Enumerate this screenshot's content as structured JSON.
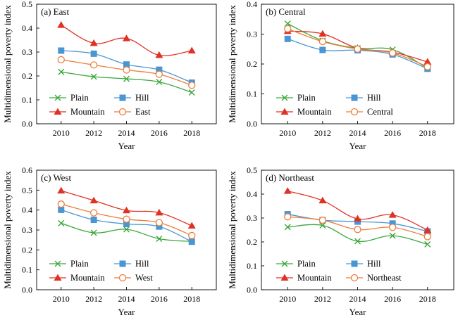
{
  "chart_data": [
    {
      "type": "line",
      "title": "(a) East",
      "xlabel": "Year",
      "ylabel": "Multidimensional poverty index",
      "x": [
        2010,
        2012,
        2014,
        2016,
        2018
      ],
      "xlim": [
        2008.5,
        2019.5
      ],
      "ylim": [
        0,
        0.5
      ],
      "yticks": [
        "0.0",
        "0.1",
        "0.2",
        "0.3",
        "0.4",
        "0.5"
      ],
      "legend_position": "bottom-left",
      "grid": false,
      "series": [
        {
          "name": "Plain",
          "marker": "x",
          "color": "#3aa83a",
          "values": [
            0.217,
            0.197,
            0.188,
            0.175,
            0.131
          ]
        },
        {
          "name": "Hill",
          "marker": "square",
          "color": "#4a96d2",
          "values": [
            0.306,
            0.293,
            0.248,
            0.226,
            0.172
          ]
        },
        {
          "name": "Mountain",
          "marker": "triangle",
          "color": "#e03224",
          "values": [
            0.413,
            0.337,
            0.357,
            0.287,
            0.306
          ]
        },
        {
          "name": "East",
          "marker": "circle",
          "color": "#ee7d3a",
          "values": [
            0.268,
            0.246,
            0.225,
            0.207,
            0.161
          ]
        }
      ]
    },
    {
      "type": "line",
      "title": "(b) Central",
      "xlabel": "Year",
      "ylabel": "Multidimensional poverty index",
      "x": [
        2010,
        2012,
        2014,
        2016,
        2018
      ],
      "xlim": [
        2008.5,
        2019.5
      ],
      "ylim": [
        0,
        0.4
      ],
      "yticks": [
        "0.0",
        "0.1",
        "0.2",
        "0.3",
        "0.4"
      ],
      "legend_position": "bottom-left",
      "grid": false,
      "series": [
        {
          "name": "Plain",
          "marker": "x",
          "color": "#3aa83a",
          "values": [
            0.335,
            0.278,
            0.253,
            0.248,
            0.186
          ]
        },
        {
          "name": "Hill",
          "marker": "square",
          "color": "#4a96d2",
          "values": [
            0.284,
            0.247,
            0.246,
            0.232,
            0.184
          ]
        },
        {
          "name": "Mountain",
          "marker": "triangle",
          "color": "#e03224",
          "values": [
            0.31,
            0.301,
            0.253,
            0.24,
            0.207
          ]
        },
        {
          "name": "Central",
          "marker": "circle",
          "color": "#ee7d3a",
          "values": [
            0.318,
            0.275,
            0.25,
            0.237,
            0.191
          ]
        }
      ]
    },
    {
      "type": "line",
      "title": "(c) West",
      "xlabel": "Year",
      "ylabel": "Multidimensional poverty index",
      "x": [
        2010,
        2012,
        2014,
        2016,
        2018
      ],
      "xlim": [
        2008.5,
        2019.5
      ],
      "ylim": [
        0,
        0.6
      ],
      "yticks": [
        "0.0",
        "0.1",
        "0.2",
        "0.3",
        "0.4",
        "0.5",
        "0.6"
      ],
      "legend_position": "bottom-left",
      "grid": false,
      "series": [
        {
          "name": "Plain",
          "marker": "x",
          "color": "#3aa83a",
          "values": [
            0.334,
            0.286,
            0.303,
            0.256,
            0.242
          ]
        },
        {
          "name": "Hill",
          "marker": "square",
          "color": "#4a96d2",
          "values": [
            0.401,
            0.351,
            0.33,
            0.317,
            0.241
          ]
        },
        {
          "name": "Mountain",
          "marker": "triangle",
          "color": "#e03224",
          "values": [
            0.497,
            0.448,
            0.398,
            0.387,
            0.321
          ]
        },
        {
          "name": "West",
          "marker": "circle",
          "color": "#ee7d3a",
          "values": [
            0.43,
            0.386,
            0.354,
            0.337,
            0.272
          ]
        }
      ]
    },
    {
      "type": "line",
      "title": "(d) Northeast",
      "xlabel": "Year",
      "ylabel": "Multidimensional poverty index",
      "x": [
        2010,
        2012,
        2014,
        2016,
        2018
      ],
      "xlim": [
        2008.5,
        2019.5
      ],
      "ylim": [
        0,
        0.5
      ],
      "yticks": [
        "0.0",
        "0.1",
        "0.2",
        "0.3",
        "0.4",
        "0.5"
      ],
      "legend_position": "bottom-left",
      "grid": false,
      "series": [
        {
          "name": "Plain",
          "marker": "x",
          "color": "#3aa83a",
          "values": [
            0.262,
            0.269,
            0.203,
            0.226,
            0.19
          ]
        },
        {
          "name": "Hill",
          "marker": "square",
          "color": "#4a96d2",
          "values": [
            0.316,
            0.291,
            0.285,
            0.277,
            0.244
          ]
        },
        {
          "name": "Mountain",
          "marker": "triangle",
          "color": "#e03224",
          "values": [
            0.413,
            0.373,
            0.297,
            0.313,
            0.249
          ]
        },
        {
          "name": "Northeast",
          "marker": "circle",
          "color": "#ee7d3a",
          "values": [
            0.305,
            0.291,
            0.252,
            0.261,
            0.222
          ]
        }
      ]
    }
  ]
}
